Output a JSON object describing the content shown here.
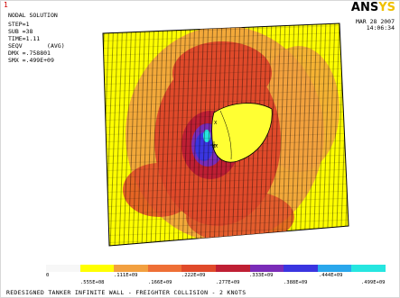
{
  "window_number": "1",
  "title": "NODAL SOLUTION",
  "solution_info": [
    "STEP=1",
    "SUB =38",
    "TIME=1.11",
    "SEQV       (AVG)",
    "DMX =.758801",
    "SMX =.499E+09"
  ],
  "logo": {
    "main": "ANS",
    "accent": "YS"
  },
  "date": "MAR 28 2007",
  "time": "14:06:34",
  "markers": {
    "mx": "MX",
    "x": "X"
  },
  "legend": {
    "colors": [
      "#f7f7f7",
      "#ffff00",
      "#f2a040",
      "#ee6f36",
      "#e04a2a",
      "#bf1f34",
      "#7a2cb8",
      "#3a35e0",
      "#2aa7ec",
      "#26e6e0"
    ],
    "labels_top": [
      "0",
      ".111E+09",
      ".222E+09",
      ".333E+09",
      ".444E+09"
    ],
    "labels_bottom": [
      ".555E+08",
      ".166E+09",
      ".277E+09",
      ".388E+09",
      ".499E+09"
    ]
  },
  "caption": "REDESIGNED TANKER INFINITE WALL - FREIGHTER COLLISION - 2 KNOTS"
}
